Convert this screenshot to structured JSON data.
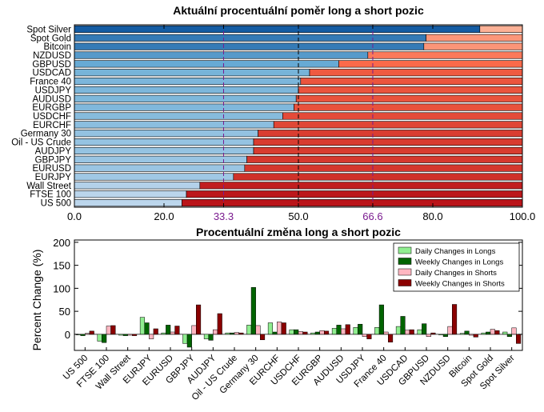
{
  "chart_data": [
    {
      "type": "bar",
      "orientation": "horizontal",
      "stacked": true,
      "title": "Aktuální procentuální poměr long a short pozic",
      "categories": [
        "Spot Silver",
        "Spot Gold",
        "Bitcoin",
        "NZDUSD",
        "GBPUSD",
        "USDCAD",
        "France 40",
        "USDJPY",
        "AUDUSD",
        "EURGBP",
        "USDCHF",
        "EURCHF",
        "Germany 30",
        "Oil - US Crude",
        "AUDJPY",
        "GBPJPY",
        "EURUSD",
        "EURJPY",
        "Wall Street",
        "FTSE 100",
        "US 500"
      ],
      "series": [
        {
          "values": [
            90.5,
            78.5,
            78,
            65.5,
            59,
            52.5,
            50.5,
            50,
            49.5,
            49,
            46.5,
            44.5,
            41,
            40,
            40,
            38.5,
            38,
            35.5,
            28,
            25,
            24
          ]
        },
        {
          "values": [
            9.5,
            21.5,
            22,
            34.5,
            41,
            47.5,
            49.5,
            50,
            50.5,
            51,
            53.5,
            55.5,
            59,
            60,
            60,
            61.5,
            62,
            64.5,
            72,
            75,
            76
          ]
        }
      ],
      "xlim": [
        0,
        100
      ],
      "xticks": [
        "0.0",
        "20.0",
        "33.3",
        "50.0",
        "66.6",
        "80.0",
        "100.0"
      ],
      "reference_lines": [
        33.3,
        50,
        66.6
      ],
      "grid": false
    },
    {
      "type": "bar",
      "title": "Procentuální změna long a short pozic",
      "ylabel": "Percent Change (%)",
      "ylim": [
        -35,
        205
      ],
      "yticks": [
        "0",
        "50",
        "100",
        "150",
        "200"
      ],
      "categories": [
        "US 500",
        "FTSE 100",
        "Wall Street",
        "EURJPY",
        "EURUSD",
        "GBPJPY",
        "AUDJPY",
        "Oil - US Crude",
        "Germany 30",
        "EURCHF",
        "USDCHF",
        "EURGBP",
        "AUDUSD",
        "USDJPY",
        "France 40",
        "USDCAD",
        "GBPUSD",
        "NZDUSD",
        "Bitcoin",
        "Spot Gold",
        "Spot Silver"
      ],
      "legend_position": "top-right",
      "series": [
        {
          "name": "Daily Changes in Longs",
          "color": "#90ee90",
          "values": [
            -1,
            -15,
            -2,
            37,
            3,
            -20,
            -10,
            3,
            20,
            25,
            10,
            3,
            13,
            15,
            15,
            17,
            10,
            -1,
            2,
            3,
            5
          ]
        },
        {
          "name": "Weekly Changes in Longs",
          "color": "#006400",
          "values": [
            -3,
            -18,
            -3,
            25,
            20,
            -28,
            -13,
            3,
            102,
            5,
            10,
            5,
            20,
            22,
            64,
            39,
            23,
            -5,
            7,
            5,
            -5
          ]
        },
        {
          "name": "Daily Changes in Shorts",
          "color": "#ffb6c1",
          "values": [
            2,
            18,
            -2,
            -10,
            5,
            19,
            10,
            4,
            19,
            27,
            6,
            8,
            12,
            -5,
            5,
            9,
            -5,
            17,
            -2,
            11,
            14
          ]
        },
        {
          "name": "Weekly Changes in Shorts",
          "color": "#8b0000",
          "values": [
            7,
            19,
            -3,
            12,
            18,
            64,
            45,
            3,
            -12,
            25,
            5,
            7,
            21,
            -10,
            -17,
            10,
            3,
            65,
            -6,
            8,
            -20
          ]
        }
      ]
    }
  ]
}
